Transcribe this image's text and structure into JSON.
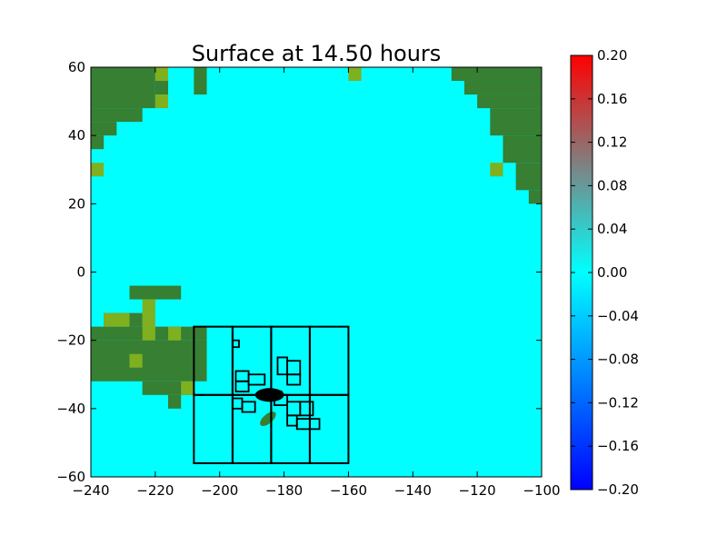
{
  "chart_data": {
    "type": "heatmap",
    "title": "Surface at 14.50 hours",
    "xlabel": "",
    "ylabel": "",
    "xlim": [
      -240,
      -100
    ],
    "ylim": [
      -60,
      60
    ],
    "x_ticks": [
      -240,
      -220,
      -200,
      -180,
      -160,
      -140,
      -120,
      -100
    ],
    "y_ticks": [
      -60,
      -40,
      -20,
      0,
      20,
      40,
      60
    ],
    "x_tick_labels": [
      "−240",
      "−220",
      "−200",
      "−180",
      "−160",
      "−140",
      "−120",
      "−100"
    ],
    "y_tick_labels": [
      "−60",
      "−40",
      "−20",
      "0",
      "20",
      "40",
      "60"
    ],
    "grid": false,
    "colorbar": {
      "min": -0.2,
      "max": 0.2,
      "ticks": [
        -0.2,
        -0.16,
        -0.12,
        -0.08,
        -0.04,
        0.0,
        0.04,
        0.08,
        0.12,
        0.16,
        0.2
      ],
      "tick_labels": [
        "−0.20",
        "−0.16",
        "−0.12",
        "−0.08",
        "−0.04",
        "0.00",
        "0.04",
        "0.08",
        "0.12",
        "0.16",
        "0.20"
      ],
      "colors": [
        "#0000ff",
        "#0080ff",
        "#00ffff",
        "#808080",
        "#ff0000"
      ]
    },
    "background_value": 0.0,
    "colors": {
      "water": "#00ffff",
      "land": "#367f33",
      "land_light": "#7fb020",
      "refinement_box": "#000000"
    },
    "land_regions": [
      {
        "name": "land",
        "x": [
          -240,
          -220
        ],
        "y": [
          48,
          60
        ]
      },
      {
        "name": "land",
        "x": [
          -240,
          -224
        ],
        "y": [
          44,
          48
        ]
      },
      {
        "name": "land",
        "x": [
          -240,
          -232
        ],
        "y": [
          40,
          44
        ]
      },
      {
        "name": "land",
        "x": [
          -240,
          -236
        ],
        "y": [
          36,
          40
        ]
      },
      {
        "name": "land",
        "x": [
          -220,
          -216
        ],
        "y": [
          52,
          56
        ]
      },
      {
        "name": "land",
        "x": [
          -208,
          -204
        ],
        "y": [
          52,
          60
        ]
      },
      {
        "name": "land",
        "x": [
          -128,
          -100
        ],
        "y": [
          56,
          60
        ]
      },
      {
        "name": "land",
        "x": [
          -124,
          -100
        ],
        "y": [
          52,
          56
        ]
      },
      {
        "name": "land",
        "x": [
          -120,
          -100
        ],
        "y": [
          48,
          52
        ]
      },
      {
        "name": "land",
        "x": [
          -116,
          -100
        ],
        "y": [
          40,
          48
        ]
      },
      {
        "name": "land",
        "x": [
          -112,
          -100
        ],
        "y": [
          32,
          40
        ]
      },
      {
        "name": "land",
        "x": [
          -108,
          -100
        ],
        "y": [
          24,
          32
        ]
      },
      {
        "name": "land",
        "x": [
          -104,
          -100
        ],
        "y": [
          20,
          24
        ]
      },
      {
        "name": "land",
        "x": [
          -228,
          -212
        ],
        "y": [
          -8,
          -4
        ]
      },
      {
        "name": "land",
        "x": [
          -236,
          -224
        ],
        "y": [
          -16,
          -12
        ]
      },
      {
        "name": "land",
        "x": [
          -240,
          -204
        ],
        "y": [
          -20,
          -16
        ]
      },
      {
        "name": "land",
        "x": [
          -240,
          -204
        ],
        "y": [
          -32,
          -20
        ]
      },
      {
        "name": "land",
        "x": [
          -224,
          -208
        ],
        "y": [
          -36,
          -32
        ]
      },
      {
        "name": "land",
        "x": [
          -216,
          -212
        ],
        "y": [
          -40,
          -36
        ]
      }
    ],
    "land_light_regions": [
      {
        "x": [
          -220,
          -216
        ],
        "y": [
          56,
          60
        ]
      },
      {
        "x": [
          -220,
          -216
        ],
        "y": [
          48,
          52
        ]
      },
      {
        "x": [
          -240,
          -236
        ],
        "y": [
          28,
          32
        ]
      },
      {
        "x": [
          -160,
          -156
        ],
        "y": [
          56,
          60
        ]
      },
      {
        "x": [
          -116,
          -112
        ],
        "y": [
          28,
          32
        ]
      },
      {
        "x": [
          -224,
          -220
        ],
        "y": [
          -12,
          -8
        ]
      },
      {
        "x": [
          -236,
          -228
        ],
        "y": [
          -16,
          -12
        ]
      },
      {
        "x": [
          -224,
          -220
        ],
        "y": [
          -20,
          -12
        ]
      },
      {
        "x": [
          -216,
          -212
        ],
        "y": [
          -20,
          -16
        ]
      },
      {
        "x": [
          -228,
          -224
        ],
        "y": [
          -28,
          -24
        ]
      },
      {
        "x": [
          -212,
          -208
        ],
        "y": [
          -36,
          -32
        ]
      }
    ],
    "coarse_boxes": [
      {
        "x": [
          -208,
          -196
        ],
        "y": [
          -36,
          -16
        ]
      },
      {
        "x": [
          -196,
          -184
        ],
        "y": [
          -36,
          -16
        ]
      },
      {
        "x": [
          -184,
          -172
        ],
        "y": [
          -36,
          -16
        ]
      },
      {
        "x": [
          -172,
          -160
        ],
        "y": [
          -36,
          -16
        ]
      },
      {
        "x": [
          -208,
          -196
        ],
        "y": [
          -56,
          -36
        ]
      },
      {
        "x": [
          -196,
          -184
        ],
        "y": [
          -56,
          -36
        ]
      },
      {
        "x": [
          -184,
          -172
        ],
        "y": [
          -56,
          -36
        ]
      },
      {
        "x": [
          -172,
          -160
        ],
        "y": [
          -56,
          -36
        ]
      }
    ],
    "fine_boxes": [
      {
        "x": [
          -196,
          -194
        ],
        "y": [
          -22,
          -20
        ]
      },
      {
        "x": [
          -195,
          -191
        ],
        "y": [
          -32,
          -29
        ]
      },
      {
        "x": [
          -195,
          -191
        ],
        "y": [
          -35,
          -32
        ]
      },
      {
        "x": [
          -191,
          -186
        ],
        "y": [
          -33,
          -30
        ]
      },
      {
        "x": [
          -182,
          -179
        ],
        "y": [
          -30,
          -25
        ]
      },
      {
        "x": [
          -179,
          -175
        ],
        "y": [
          -30,
          -26
        ]
      },
      {
        "x": [
          -179,
          -175
        ],
        "y": [
          -33,
          -30
        ]
      },
      {
        "x": [
          -196,
          -193
        ],
        "y": [
          -40,
          -37
        ]
      },
      {
        "x": [
          -193,
          -189
        ],
        "y": [
          -41,
          -38
        ]
      },
      {
        "x": [
          -183,
          -179
        ],
        "y": [
          -39,
          -36
        ]
      },
      {
        "x": [
          -179,
          -175
        ],
        "y": [
          -42,
          -38
        ]
      },
      {
        "x": [
          -175,
          -171
        ],
        "y": [
          -42,
          -38
        ]
      },
      {
        "x": [
          -179,
          -176
        ],
        "y": [
          -45,
          -42
        ]
      },
      {
        "x": [
          -176,
          -172
        ],
        "y": [
          -46,
          -43
        ]
      },
      {
        "x": [
          -172,
          -169
        ],
        "y": [
          -46,
          -43
        ]
      }
    ],
    "dense_cluster": {
      "x": [
        -189,
        -180
      ],
      "y": [
        -38,
        -34
      ]
    },
    "small_land_features": [
      {
        "x": [
          -188,
          -182
        ],
        "y": [
          -46,
          -40
        ]
      },
      {
        "x": [
          -184,
          -180
        ],
        "y": [
          -38,
          -34
        ]
      }
    ]
  }
}
